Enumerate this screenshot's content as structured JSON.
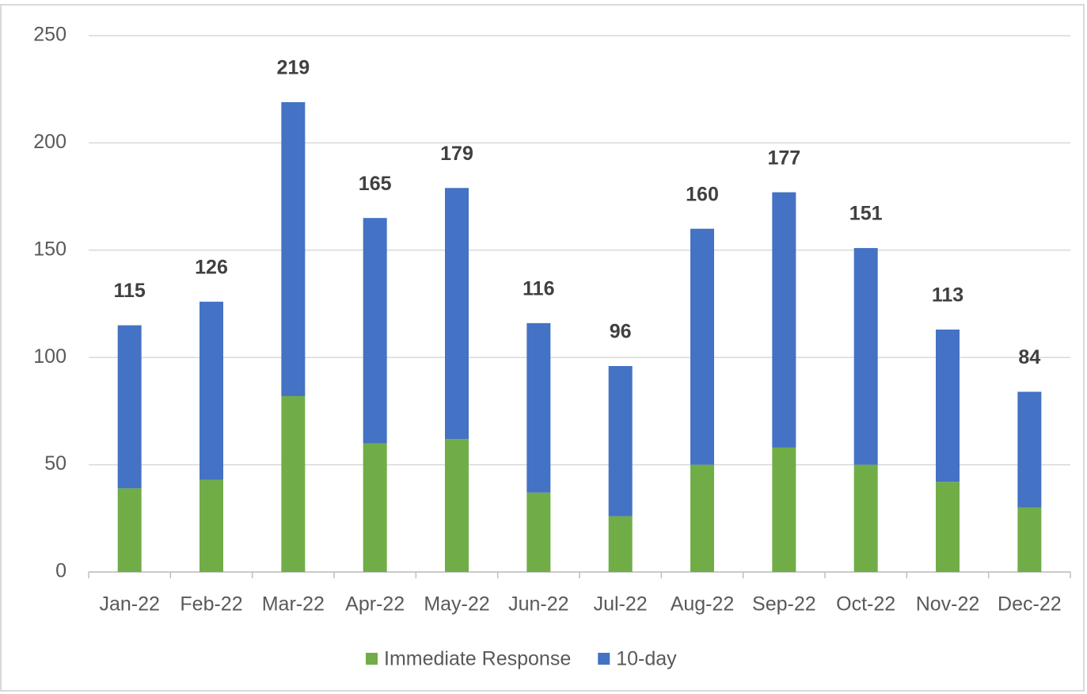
{
  "chart_data": {
    "type": "stacked_bar",
    "categories": [
      "Jan-22",
      "Feb-22",
      "Mar-22",
      "Apr-22",
      "May-22",
      "Jun-22",
      "Jul-22",
      "Aug-22",
      "Sep-22",
      "Oct-22",
      "Nov-22",
      "Dec-22"
    ],
    "series": [
      {
        "name": "Immediate Response",
        "color": "#70ad47",
        "values": [
          39,
          43,
          82,
          60,
          62,
          37,
          26,
          50,
          58,
          50,
          42,
          30
        ]
      },
      {
        "name": "10-day",
        "color": "#4472c4",
        "values": [
          76,
          83,
          137,
          105,
          117,
          79,
          70,
          110,
          119,
          101,
          71,
          54
        ]
      }
    ],
    "totals": [
      115,
      126,
      219,
      165,
      179,
      116,
      96,
      160,
      177,
      151,
      113,
      84
    ],
    "ylim": [
      0,
      250
    ],
    "yticks": [
      0,
      50,
      100,
      150,
      200,
      250
    ],
    "grid": true,
    "legend": "bottom"
  }
}
